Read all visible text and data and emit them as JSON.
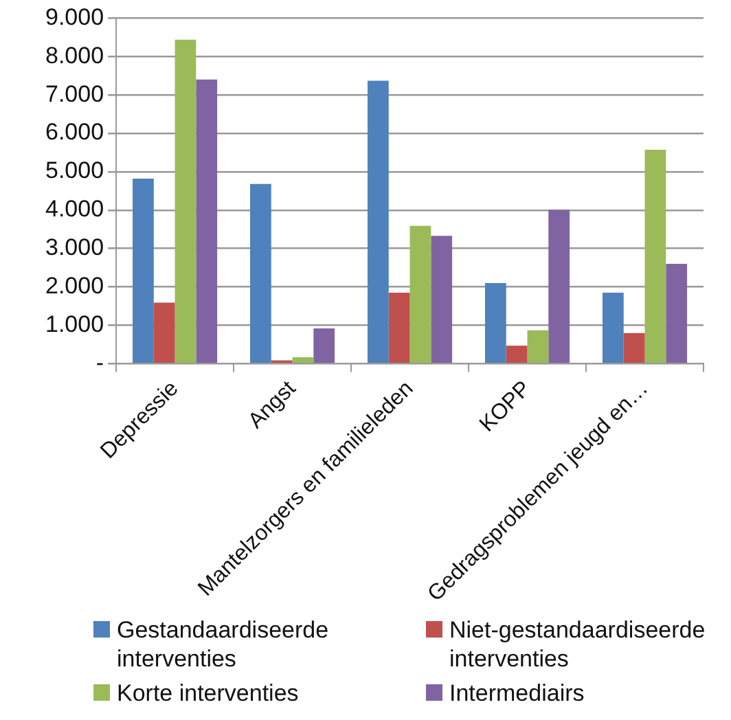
{
  "chart_data": {
    "type": "bar",
    "categories": [
      "Depressie",
      "Angst",
      "Mantelzorgers en familieleden",
      "KOPP",
      "Gedragsproblemen jeugd en…"
    ],
    "series": [
      {
        "name": "Gestandaardiseerde interventies",
        "color": "#4f81bd",
        "values": [
          4820,
          4680,
          7370,
          2100,
          1850
        ]
      },
      {
        "name": "Niet-gestandaardiseerde interventies",
        "color": "#c0504d",
        "values": [
          1590,
          90,
          1850,
          470,
          800
        ]
      },
      {
        "name": "Korte interventies",
        "color": "#9bbb59",
        "values": [
          8440,
          170,
          3590,
          870,
          5570
        ]
      },
      {
        "name": "Intermediairs",
        "color": "#8064a2",
        "values": [
          7400,
          920,
          3330,
          4010,
          2600
        ]
      }
    ],
    "ylim": [
      0,
      9000
    ],
    "yticks": [
      {
        "value": 0,
        "label": "-"
      },
      {
        "value": 1000,
        "label": "1.000"
      },
      {
        "value": 2000,
        "label": "2.000"
      },
      {
        "value": 3000,
        "label": "3.000"
      },
      {
        "value": 4000,
        "label": "4.000"
      },
      {
        "value": 5000,
        "label": "5.000"
      },
      {
        "value": 6000,
        "label": "6.000"
      },
      {
        "value": 7000,
        "label": "7.000"
      },
      {
        "value": 8000,
        "label": "8.000"
      },
      {
        "value": 9000,
        "label": "9.000"
      }
    ],
    "grid": "y",
    "legend": "bottom"
  }
}
